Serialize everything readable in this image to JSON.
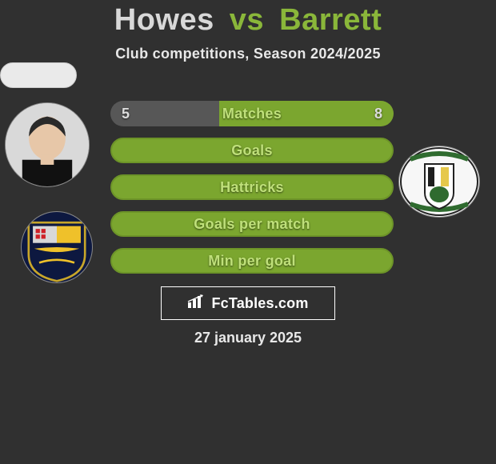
{
  "title": {
    "p1": "Howes",
    "vs": "vs",
    "p2": "Barrett"
  },
  "subtitle": "Club competitions, Season 2024/2025",
  "colors": {
    "bg": "#303030",
    "accent": "#8ab73a",
    "accent_text": "#bfe07a",
    "left_seg": "#575757",
    "right_seg": "#7ba62f",
    "full_bg": "#7ba62f",
    "border": "#6d9428",
    "value_text": "#dcdcdc",
    "white": "#ffffff"
  },
  "bars": {
    "height": 32,
    "gap": 14,
    "radius": 16,
    "border_width": 2
  },
  "stats": [
    {
      "label": "Matches",
      "left_value": "5",
      "right_value": "8",
      "type": "split",
      "left_pct": 38.5,
      "right_pct": 61.5,
      "left_color": "#575757",
      "right_color": "#7ba62f"
    },
    {
      "label": "Goals",
      "type": "full",
      "bg_color": "#7ba62f",
      "border_color": "#6d9428"
    },
    {
      "label": "Hattricks",
      "type": "full",
      "bg_color": "#7ba62f",
      "border_color": "#6d9428"
    },
    {
      "label": "Goals per match",
      "type": "full",
      "bg_color": "#7ba62f",
      "border_color": "#6d9428"
    },
    {
      "label": "Min per goal",
      "type": "full",
      "bg_color": "#7ba62f",
      "border_color": "#6d9428"
    }
  ],
  "left_player": {
    "name": "Howes"
  },
  "right_player": {
    "name": "Barrett"
  },
  "left_club_shield": {
    "bg": "#0d1840",
    "stripe1": "#efc12a",
    "stripe2": "#cf2128"
  },
  "right_club_shield": {
    "bg": "#f4f4f4",
    "stripe1": "#1f1f1f",
    "stripe2": "#e6c84b",
    "accent": "#2f6b2f"
  },
  "watermark": {
    "text": "FcTables.com",
    "icon": "bars-icon"
  },
  "date": "27 january 2025"
}
